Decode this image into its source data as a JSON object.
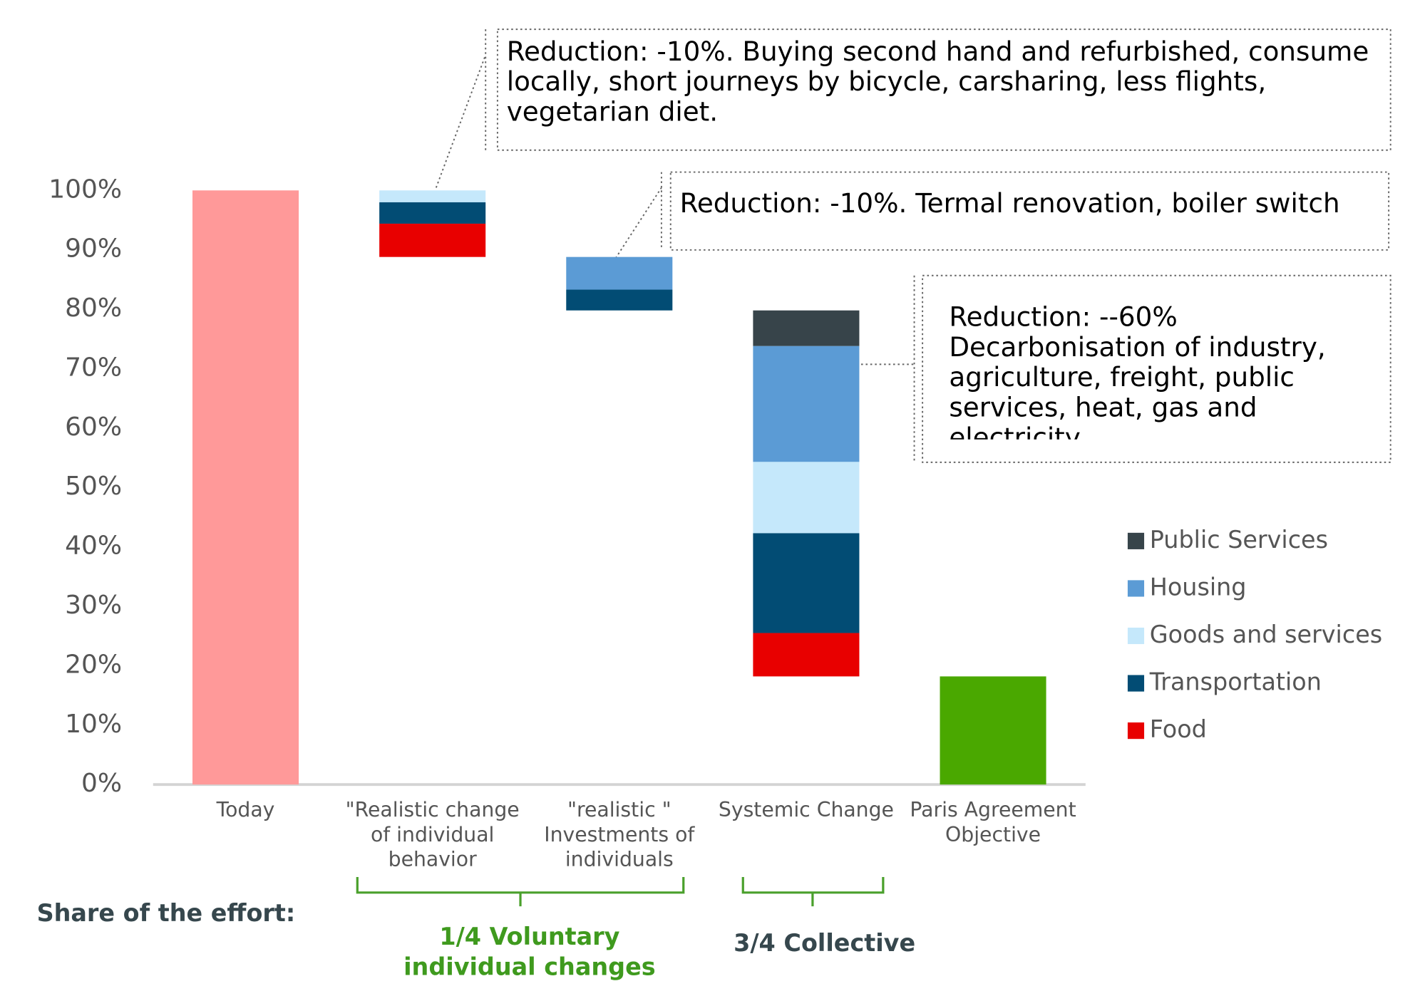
{
  "chart_data": {
    "type": "waterfall",
    "categories": [
      "Today",
      "\"Realistic change of individual behavior",
      "\"realistic \" Investments of individuals",
      "Systemic Change",
      "Paris Agreement Objective"
    ],
    "totals": {
      "values": [
        100,
        null,
        null,
        null,
        18.2
      ],
      "colors": [
        "#ff9999",
        null,
        null,
        null,
        "#4aa800"
      ]
    },
    "series": [
      {
        "name": "Public Services",
        "color": "#37444a",
        "values": [
          null,
          null,
          null,
          6,
          null
        ]
      },
      {
        "name": "Housing",
        "color": "#5b9bd5",
        "values": [
          null,
          null,
          5.5,
          19.5,
          null
        ]
      },
      {
        "name": "Goods and services",
        "color": "#c5e8fb",
        "values": [
          null,
          2,
          null,
          12,
          null
        ]
      },
      {
        "name": "Transportation",
        "color": "#024c74",
        "values": [
          null,
          3.6,
          3.5,
          16.8,
          null
        ]
      },
      {
        "name": "Food",
        "color": "#e80000",
        "values": [
          null,
          5.6,
          null,
          7.3,
          null
        ]
      }
    ],
    "ylim": [
      0,
      100
    ],
    "yticks": [
      {
        "value": 0,
        "label": "0%"
      },
      {
        "value": 10,
        "label": "10%"
      },
      {
        "value": 20,
        "label": "20%"
      },
      {
        "value": 30,
        "label": "30%"
      },
      {
        "value": 40,
        "label": "40%"
      },
      {
        "value": 50,
        "label": "50%"
      },
      {
        "value": 60,
        "label": "60%"
      },
      {
        "value": 70,
        "label": "70%"
      },
      {
        "value": 80,
        "label": "80%"
      },
      {
        "value": 90,
        "label": "90%"
      },
      {
        "value": 100,
        "label": "100%"
      }
    ],
    "grid": false,
    "annotations": [
      {
        "lines": [
          "Reduction: -10%. Buying second hand and refurbished, consume locally, short journeys by bicycle, carsharing, less flights, vegetarian diet."
        ]
      },
      {
        "lines": [
          "Reduction: -10%. Termal renovation, boiler switch"
        ]
      },
      {
        "lines": [
          "Reduction: --60%",
          "Decarbonisation of industry, agriculture, freight, public services, heat, gas and electricity."
        ]
      }
    ],
    "effort_label": "Share of the effort:",
    "groups": [
      {
        "label": "1/4 Voluntary individual changes",
        "color": "#3f9a1e"
      },
      {
        "label": "3/4 Collective",
        "color": "#36474d"
      }
    ]
  }
}
